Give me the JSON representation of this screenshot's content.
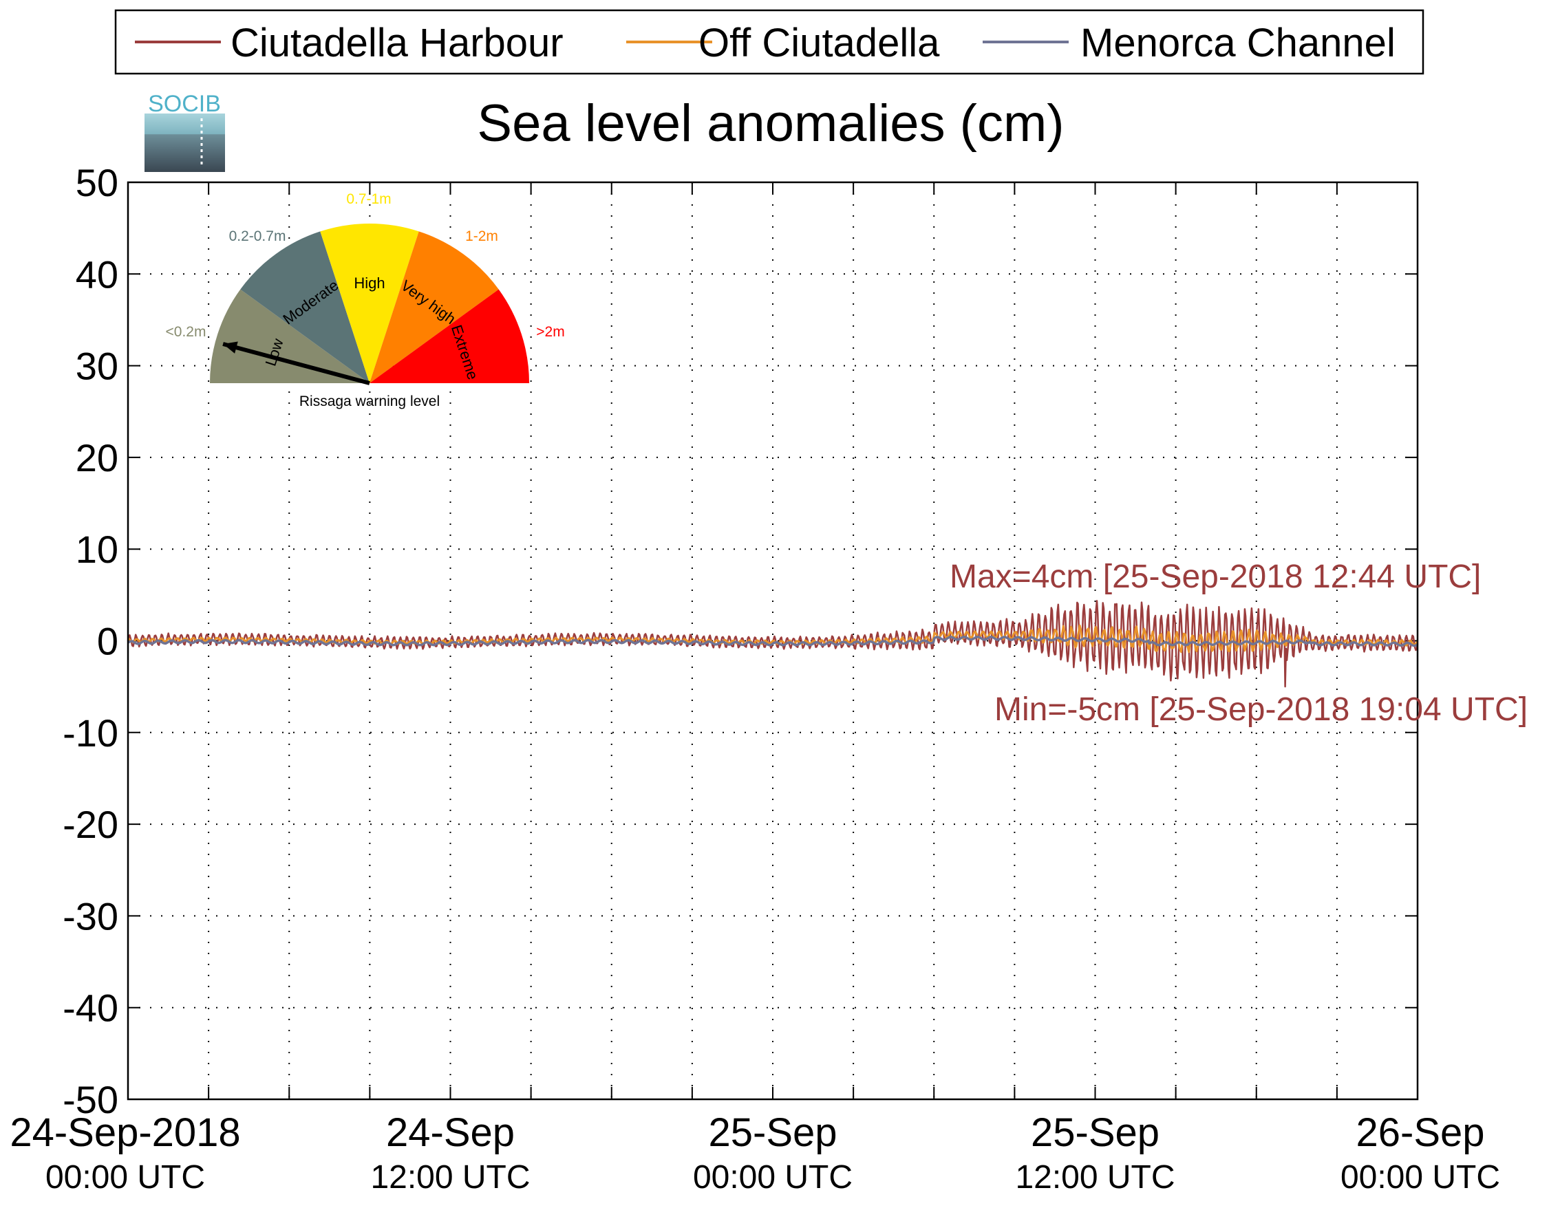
{
  "chart_data": {
    "type": "line",
    "title": "Sea level anomalies (cm)",
    "logo_text": "SOCIB",
    "xlabel": "",
    "ylabel": "",
    "x_start": "24-Sep-2018 00:00 UTC",
    "x_end": "26-Sep-2018 00:00 UTC",
    "xlim_hours": [
      0,
      48
    ],
    "ylim": [
      -50,
      50
    ],
    "yticks": [
      50,
      40,
      30,
      20,
      10,
      0,
      -10,
      -20,
      -30,
      -40,
      -50
    ],
    "ytick_labels": [
      "50",
      "40",
      "30",
      "20",
      "10",
      "0",
      "-10",
      "-20",
      "-30",
      "-40",
      "-50"
    ],
    "xticks": [
      {
        "hour": 0,
        "line1": "24-Sep-2018",
        "line2": "00:00 UTC"
      },
      {
        "hour": 12,
        "line1": "24-Sep",
        "line2": "12:00 UTC"
      },
      {
        "hour": 24,
        "line1": "25-Sep",
        "line2": "00:00 UTC"
      },
      {
        "hour": 36,
        "line1": "25-Sep",
        "line2": "12:00 UTC"
      },
      {
        "hour": 48,
        "line1": "26-Sep",
        "line2": "00:00 UTC"
      }
    ],
    "grid": true,
    "legend_position": "top",
    "series": [
      {
        "name": "Ciutadella Harbour",
        "color": "#9B3D3D"
      },
      {
        "name": "Off Ciutadella",
        "color": "#E8922A"
      },
      {
        "name": "Menorca Channel",
        "color": "#6F7494"
      }
    ],
    "stats": {
      "max_label": "Max=4cm [25-Sep-2018 12:44 UTC]",
      "max_value": 4,
      "max_time": "25-Sep-2018 12:44 UTC",
      "min_label": "Min=-5cm [25-Sep-2018 19:04 UTC]",
      "min_value": -5,
      "min_time": "25-Sep-2018 19:04 UTC",
      "color": "#9B3D3D"
    },
    "gauge": {
      "caption": "Rissaga warning level",
      "current_level": "Low",
      "segments": [
        {
          "label": "Low",
          "range": "<0.2m",
          "color": "#878B6E",
          "range_color": "#878B6E"
        },
        {
          "label": "Moderate",
          "range": "0.2-0.7m",
          "color": "#5B7476",
          "range_color": "#5B7476"
        },
        {
          "label": "High",
          "range": "0.7-1m",
          "color": "#FFE600",
          "range_color": "#FFE600"
        },
        {
          "label": "Very high",
          "range": "1-2m",
          "color": "#FF8000",
          "range_color": "#FF8000"
        },
        {
          "label": "Extreme",
          "range": ">2m",
          "color": "#FF0000",
          "range_color": "#FF0000"
        }
      ]
    }
  }
}
